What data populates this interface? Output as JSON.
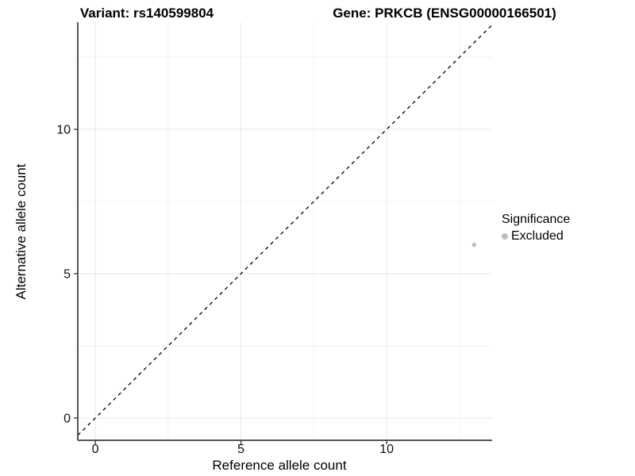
{
  "chart_data": {
    "type": "scatter",
    "title_left": "Variant: rs140599804",
    "title_right": "Gene: PRKCB (ENSG00000166501)",
    "xlabel": "Reference allele count",
    "ylabel": "Alternative allele count",
    "xlim": [
      -0.6,
      13.62
    ],
    "ylim": [
      -0.77,
      13.71
    ],
    "xticks": [
      0,
      5,
      10
    ],
    "yticks": [
      0,
      5,
      10
    ],
    "x_minor_gridlines": [
      2.5,
      7.5,
      12.5
    ],
    "y_minor_gridlines": [
      2.5,
      7.5,
      12.5
    ],
    "grid": true,
    "legend_position": "right",
    "abline": {
      "slope": 1,
      "intercept": 0,
      "style": "dashed",
      "color": "#000000"
    },
    "series": [
      {
        "name": "Excluded",
        "color": "#bdbdbd",
        "points": [
          {
            "x": 13,
            "y": 6
          }
        ]
      }
    ],
    "legend": {
      "title": "Significance",
      "items": [
        {
          "label": "Excluded",
          "color": "#bdbdbd"
        }
      ]
    }
  },
  "colors": {
    "background": "#ffffff",
    "grid_major": "#e7e7e7",
    "grid_minor": "#f2f2f2",
    "axis_line": "#404040",
    "tick_mark": "#333333",
    "text": "#000000",
    "point": "#bdbdbd",
    "dashed_line": "#000000"
  }
}
